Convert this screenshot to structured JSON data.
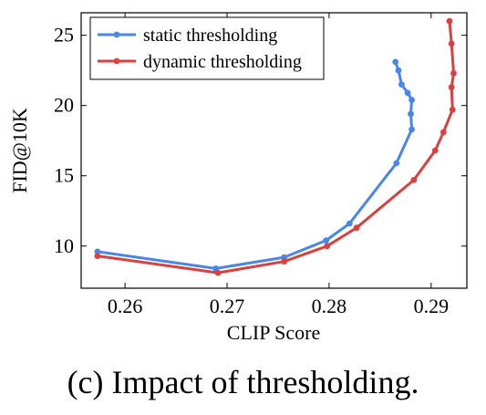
{
  "chart_data": {
    "type": "line",
    "xlabel": "CLIP Score",
    "ylabel": "FID@10K",
    "xlim": [
      0.2557,
      0.2935
    ],
    "ylim": [
      7.0,
      26.6
    ],
    "xticks": [
      0.26,
      0.27,
      0.28,
      0.29
    ],
    "xtick_labels": [
      "0.26",
      "0.27",
      "0.28",
      "0.29"
    ],
    "yticks": [
      10,
      15,
      20,
      25
    ],
    "ytick_labels": [
      "10",
      "15",
      "20",
      "25"
    ],
    "grid": false,
    "legend_position": "top-left",
    "series": [
      {
        "name": "static thresholding",
        "color": "#4a86e8",
        "points": [
          [
            0.2573,
            9.6
          ],
          [
            0.2689,
            8.4
          ],
          [
            0.2756,
            9.2
          ],
          [
            0.2797,
            10.4
          ],
          [
            0.282,
            11.6
          ],
          [
            0.2866,
            15.9
          ],
          [
            0.2881,
            18.3
          ],
          [
            0.288,
            19.4
          ],
          [
            0.2881,
            20.4
          ],
          [
            0.2877,
            20.9
          ],
          [
            0.2871,
            21.5
          ],
          [
            0.2868,
            22.5
          ],
          [
            0.2865,
            23.1
          ]
        ]
      },
      {
        "name": "dynamic thresholding",
        "color": "#d94040",
        "points": [
          [
            0.2573,
            9.3
          ],
          [
            0.2691,
            8.1
          ],
          [
            0.2756,
            8.9
          ],
          [
            0.2798,
            10.0
          ],
          [
            0.2827,
            11.3
          ],
          [
            0.2883,
            14.7
          ],
          [
            0.2904,
            16.8
          ],
          [
            0.2912,
            18.1
          ],
          [
            0.2921,
            19.7
          ],
          [
            0.292,
            21.3
          ],
          [
            0.2922,
            22.3
          ],
          [
            0.292,
            24.4
          ],
          [
            0.2918,
            26.0
          ]
        ]
      }
    ]
  },
  "caption": "(c) Impact of thresholding."
}
